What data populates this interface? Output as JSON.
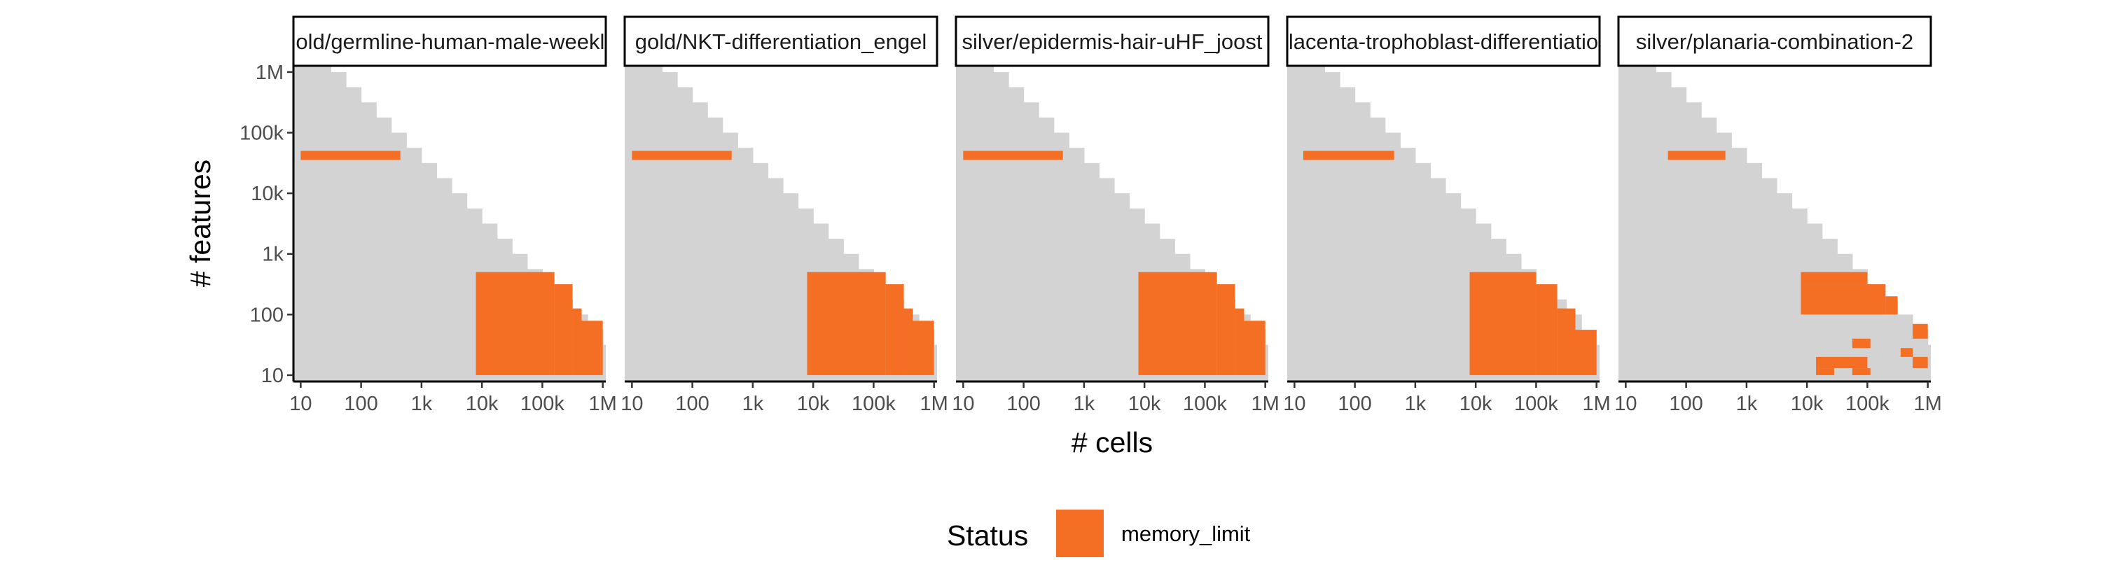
{
  "chart_data": {
    "type": "heatmap",
    "xlabel": "# cells",
    "ylabel": "# features",
    "x_scale": "log10",
    "y_scale": "log10",
    "xlim": [
      10,
      1000000
    ],
    "ylim": [
      10,
      1000000
    ],
    "x_ticks": [
      {
        "value": 10,
        "label": "10"
      },
      {
        "value": 100,
        "label": "100"
      },
      {
        "value": 1000,
        "label": "1k"
      },
      {
        "value": 10000,
        "label": "10k"
      },
      {
        "value": 100000,
        "label": "100k"
      },
      {
        "value": 1000000,
        "label": "1M"
      }
    ],
    "y_ticks": [
      {
        "value": 10,
        "label": "10"
      },
      {
        "value": 100,
        "label": "100"
      },
      {
        "value": 1000,
        "label": "1k"
      },
      {
        "value": 10000,
        "label": "10k"
      },
      {
        "value": 100000,
        "label": "100k"
      },
      {
        "value": 1000000,
        "label": "1M"
      }
    ],
    "grid_note": "grey cells = evaluated (no status); orange cells = memory_limit",
    "legend": {
      "title": "Status",
      "position": "bottom",
      "items": [
        {
          "label": "memory_limit",
          "color": "#f46e24"
        }
      ]
    },
    "colors": {
      "background_cells": "#d3d3d3",
      "memory_limit": "#f46e24"
    },
    "facets": [
      {
        "title": "gold/germline-human-male-weekly",
        "grey_region": {
          "log10_max_sum": 6.5
        },
        "memory_limit_rects": [
          {
            "x": [
              10,
              447
            ],
            "y": [
              35481,
              50119
            ]
          },
          {
            "x": [
              7943,
              158489
            ],
            "y": [
              10,
              501
            ]
          },
          {
            "x": [
              158489,
              316228
            ],
            "y": [
              10,
              316
            ]
          },
          {
            "x": [
              316228,
              446684
            ],
            "y": [
              10,
              126
            ]
          },
          {
            "x": [
              446684,
              1000000
            ],
            "y": [
              10,
              79
            ]
          }
        ]
      },
      {
        "title": "gold/NKT-differentiation_engel",
        "grey_region": {
          "log10_max_sum": 6.5
        },
        "memory_limit_rects": [
          {
            "x": [
              10,
              447
            ],
            "y": [
              35481,
              50119
            ]
          },
          {
            "x": [
              7943,
              158489
            ],
            "y": [
              10,
              501
            ]
          },
          {
            "x": [
              158489,
              316228
            ],
            "y": [
              10,
              316
            ]
          },
          {
            "x": [
              316228,
              446684
            ],
            "y": [
              10,
              126
            ]
          },
          {
            "x": [
              446684,
              1000000
            ],
            "y": [
              10,
              79
            ]
          }
        ]
      },
      {
        "title": "silver/epidermis-hair-uHF_joost",
        "grey_region": {
          "log10_max_sum": 6.5
        },
        "memory_limit_rects": [
          {
            "x": [
              10,
              447
            ],
            "y": [
              35481,
              50119
            ]
          },
          {
            "x": [
              7943,
              158489
            ],
            "y": [
              10,
              501
            ]
          },
          {
            "x": [
              158489,
              316228
            ],
            "y": [
              10,
              316
            ]
          },
          {
            "x": [
              316228,
              446684
            ],
            "y": [
              10,
              126
            ]
          },
          {
            "x": [
              446684,
              1000000
            ],
            "y": [
              10,
              79
            ]
          }
        ]
      },
      {
        "title": "placenta-trophoblast-differentiation",
        "grey_region": {
          "log10_max_sum": 6.5
        },
        "memory_limit_rects": [
          {
            "x": [
              14,
              447
            ],
            "y": [
              35481,
              50119
            ]
          },
          {
            "x": [
              7943,
              100000
            ],
            "y": [
              10,
              501
            ]
          },
          {
            "x": [
              100000,
              223872
            ],
            "y": [
              10,
              316
            ]
          },
          {
            "x": [
              223872,
              446684
            ],
            "y": [
              10,
              126
            ]
          },
          {
            "x": [
              446684,
              1000000
            ],
            "y": [
              10,
              56
            ]
          }
        ]
      },
      {
        "title": "silver/planaria-combination-2",
        "grey_region": {
          "log10_max_sum": 6.5
        },
        "memory_limit_rects": [
          {
            "x": [
              50,
              447
            ],
            "y": [
              35481,
              50119
            ]
          },
          {
            "x": [
              7943,
              100000
            ],
            "y": [
              316,
              501
            ]
          },
          {
            "x": [
              7943,
              200000
            ],
            "y": [
              100,
              316
            ]
          },
          {
            "x": [
              200000,
              316228
            ],
            "y": [
              100,
              200
            ]
          },
          {
            "x": [
              56234,
              112202
            ],
            "y": [
              28,
              40
            ]
          },
          {
            "x": [
              562341,
              1000000
            ],
            "y": [
              40,
              70
            ]
          },
          {
            "x": [
              355000,
              562341
            ],
            "y": [
              20,
              28
            ]
          },
          {
            "x": [
              562341,
              1000000
            ],
            "y": [
              13,
              20
            ]
          },
          {
            "x": [
              14125,
              100000
            ],
            "y": [
              13,
              20
            ]
          },
          {
            "x": [
              14125,
              28184
            ],
            "y": [
              10,
              13
            ]
          },
          {
            "x": [
              56234,
              112202
            ],
            "y": [
              10,
              13
            ]
          }
        ]
      }
    ]
  }
}
